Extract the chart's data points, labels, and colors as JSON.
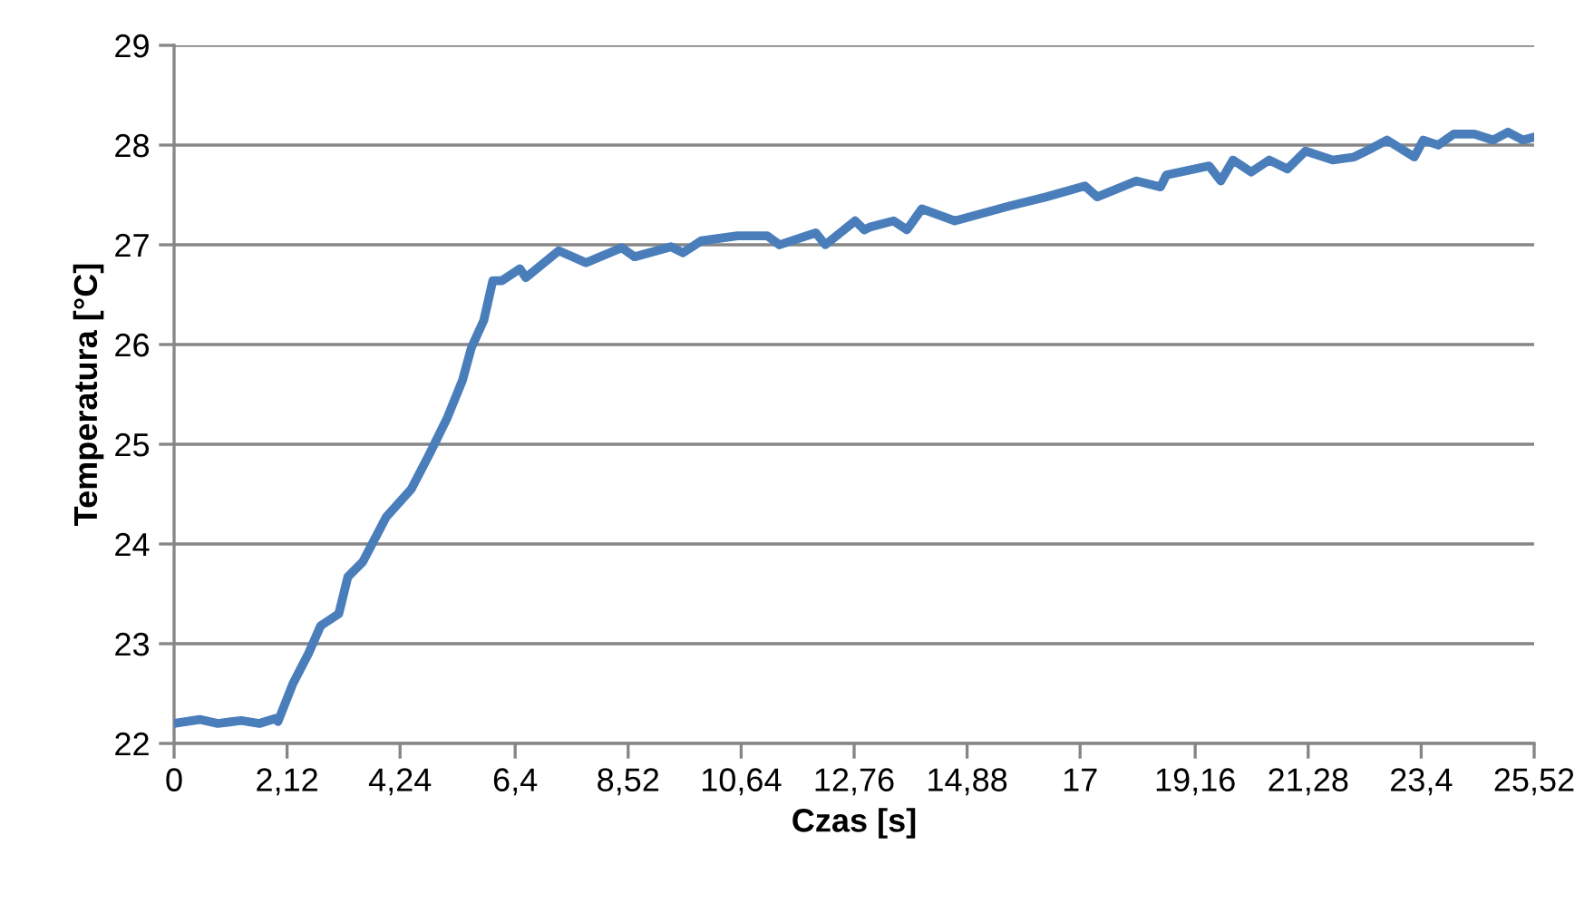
{
  "chart_data": {
    "type": "line",
    "xlabel": "Czas [s]",
    "ylabel": "Temperatura [°C]",
    "xlim": [
      0,
      25.52
    ],
    "ylim": [
      22,
      29
    ],
    "xticks": [
      0,
      {
        "value": 2.12,
        "label": "2,12"
      },
      {
        "value": 4.24,
        "label": "4,24"
      },
      {
        "value": 6.4,
        "label": "6,4"
      },
      {
        "value": 8.52,
        "label": "8,52"
      },
      {
        "value": 10.64,
        "label": "10,64"
      },
      {
        "value": 12.76,
        "label": "12,76"
      },
      {
        "value": 14.88,
        "label": "14,88"
      },
      17,
      {
        "value": 19.16,
        "label": "19,16"
      },
      {
        "value": 21.28,
        "label": "21,28"
      },
      {
        "value": 23.4,
        "label": "23,4"
      },
      {
        "value": 25.52,
        "label": "25,52"
      }
    ],
    "yticks": [
      22,
      23,
      24,
      25,
      26,
      27,
      28,
      29
    ],
    "grid": "y",
    "marker": "none",
    "line_style": "solid",
    "series": [
      {
        "color": "#4a7ebb",
        "x": [
          0,
          0.48,
          0.82,
          1.26,
          1.6,
          1.9,
          1.95,
          2.23,
          2.52,
          2.75,
          3.09,
          3.26,
          3.54,
          3.98,
          4.45,
          4.79,
          5.13,
          5.41,
          5.58,
          5.81,
          5.98,
          6.15,
          6.49,
          6.6,
          7.22,
          7.73,
          8.4,
          8.64,
          9.32,
          9.55,
          9.89,
          10.57,
          11.13,
          11.36,
          12.04,
          12.22,
          12.78,
          12.95,
          13.07,
          13.5,
          13.75,
          14.03,
          14.65,
          15.68,
          16.36,
          17.09,
          17.32,
          18.06,
          18.51,
          18.62,
          19.42,
          19.64,
          19.87,
          20.21,
          20.55,
          20.89,
          21.23,
          21.74,
          22.14,
          22.48,
          22.76,
          23.27,
          23.44,
          23.72,
          24.01,
          24.4,
          24.75,
          25.03,
          25.31,
          25.52
        ],
        "values": [
          22.2,
          22.24,
          22.2,
          22.23,
          22.2,
          22.25,
          22.22,
          22.6,
          22.9,
          23.18,
          23.3,
          23.67,
          23.82,
          24.27,
          24.55,
          24.9,
          25.27,
          25.64,
          25.97,
          26.24,
          26.64,
          26.64,
          26.76,
          26.67,
          26.94,
          26.82,
          26.97,
          26.88,
          26.98,
          26.92,
          27.04,
          27.09,
          27.09,
          27.0,
          27.12,
          27.0,
          27.24,
          27.15,
          27.18,
          27.24,
          27.15,
          27.36,
          27.24,
          27.39,
          27.48,
          27.59,
          27.48,
          27.64,
          27.58,
          27.7,
          27.79,
          27.64,
          27.85,
          27.73,
          27.85,
          27.76,
          27.94,
          27.85,
          27.88,
          27.97,
          28.05,
          27.88,
          28.05,
          28.0,
          28.11,
          28.11,
          28.05,
          28.13,
          28.05,
          28.08
        ]
      }
    ]
  }
}
